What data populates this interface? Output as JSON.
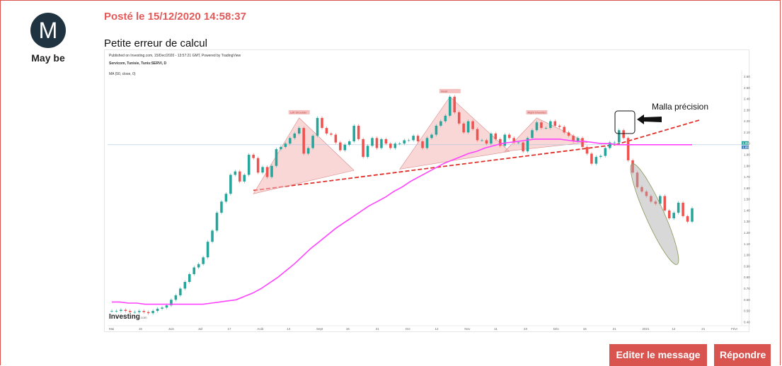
{
  "author": {
    "initial": "M",
    "name": "May be"
  },
  "post": {
    "date": "Posté le 15/12/2020 14:58:37",
    "body": "Petite erreur de calcul"
  },
  "buttons": {
    "edit": "Editer le message",
    "reply": "Répondre"
  },
  "chart": {
    "header_line1": "Published on Investing.com, 15/Dec/2020 - 13:57:21 GMT, Powered by TradingView",
    "header_line2": "Servicom, Tunisie, Tunis:SERVI, D",
    "header_line3": "MA (50, close, 0)",
    "logo_bold": "Investing",
    "logo_tail": ".com",
    "annotation": "Malla précision",
    "pattern_labels": [
      "Left Shoulder",
      "Head",
      "Right Shoulder"
    ],
    "price_tags": [
      "1.99",
      "1.89"
    ]
  },
  "chart_data": {
    "type": "candlestick",
    "title": "Servicom, Tunisie, Tunis:SERVI, D",
    "y_ticks": [
      "2.60",
      "2.50",
      "2.40",
      "2.30",
      "2.20",
      "2.10",
      "2.00",
      "1.90",
      "1.80",
      "1.70",
      "1.60",
      "1.50",
      "1.40",
      "1.30",
      "1.20",
      "1.10",
      "1.00",
      "0.90",
      "0.80",
      "0.70",
      "0.60",
      "0.50",
      "0.40"
    ],
    "ylim": [
      0.38,
      2.66
    ],
    "x_ticks": [
      "Mai",
      "15",
      "Juin",
      "Juil",
      "17",
      "Août",
      "14",
      "Sept",
      "16",
      "21",
      "Oct",
      "12",
      "Nov",
      "11",
      "23",
      "Déc",
      "16",
      "21",
      "2021",
      "12",
      "21",
      "Févr"
    ],
    "close": [
      0.5,
      0.5,
      0.51,
      0.5,
      0.49,
      0.49,
      0.5,
      0.49,
      0.48,
      0.5,
      0.52,
      0.53,
      0.55,
      0.6,
      0.64,
      0.7,
      0.76,
      0.83,
      0.89,
      0.92,
      0.98,
      1.12,
      1.22,
      1.38,
      1.48,
      1.55,
      1.72,
      1.75,
      1.66,
      1.72,
      1.9,
      1.87,
      1.74,
      1.79,
      1.7,
      1.8,
      1.95,
      1.97,
      2.0,
      2.05,
      2.09,
      2.14,
      1.91,
      1.96,
      2.07,
      2.23,
      2.14,
      2.09,
      2.08,
      2.01,
      1.94,
      1.99,
      2.02,
      2.16,
      2.04,
      1.88,
      1.98,
      2.05,
      1.96,
      2.04,
      2.0,
      1.96,
      2.0,
      2.0,
      2.03,
      2.03,
      2.07,
      2.02,
      1.96,
      2.05,
      2.08,
      2.16,
      2.2,
      2.25,
      2.42,
      2.28,
      2.18,
      2.1,
      2.2,
      2.13,
      2.03,
      2.03,
      2.0,
      2.09,
      2.04,
      1.98,
      2.08,
      2.05,
      2.01,
      2.01,
      1.93,
      2.05,
      2.12,
      2.19,
      2.14,
      2.14,
      2.2,
      2.16,
      2.15,
      2.1,
      2.07,
      2.02,
      2.05,
      1.97,
      1.91,
      1.82,
      1.88,
      1.89,
      1.96,
      2.01,
      2.01,
      2.12,
      2.05,
      1.85,
      1.74,
      1.61,
      1.57,
      1.53,
      1.48,
      1.46,
      1.53,
      1.4,
      1.33,
      1.38,
      1.47,
      1.35,
      1.3,
      1.42
    ],
    "ma": [
      0.58,
      0.58,
      0.57,
      0.57,
      0.56,
      0.56,
      0.56,
      0.56,
      0.56,
      0.56,
      0.56,
      0.56,
      0.57,
      0.58,
      0.59,
      0.6,
      0.63,
      0.66,
      0.7,
      0.75,
      0.8,
      0.86,
      0.92,
      0.99,
      1.06,
      1.12,
      1.18,
      1.24,
      1.29,
      1.34,
      1.39,
      1.44,
      1.48,
      1.52,
      1.57,
      1.61,
      1.66,
      1.7,
      1.74,
      1.78,
      1.82,
      1.85,
      1.88,
      1.91,
      1.93,
      1.96,
      1.98,
      2.0,
      2.01,
      2.02,
      2.03,
      2.04,
      2.04,
      2.04,
      2.04,
      2.03,
      2.02,
      2.02,
      2.01,
      2.0,
      2.0,
      1.99,
      1.99,
      1.99,
      1.99,
      1.99,
      1.99,
      1.99,
      1.99,
      1.99,
      1.99
    ],
    "neckline_y": [
      1.58,
      1.99
    ],
    "current_price": 1.99
  }
}
